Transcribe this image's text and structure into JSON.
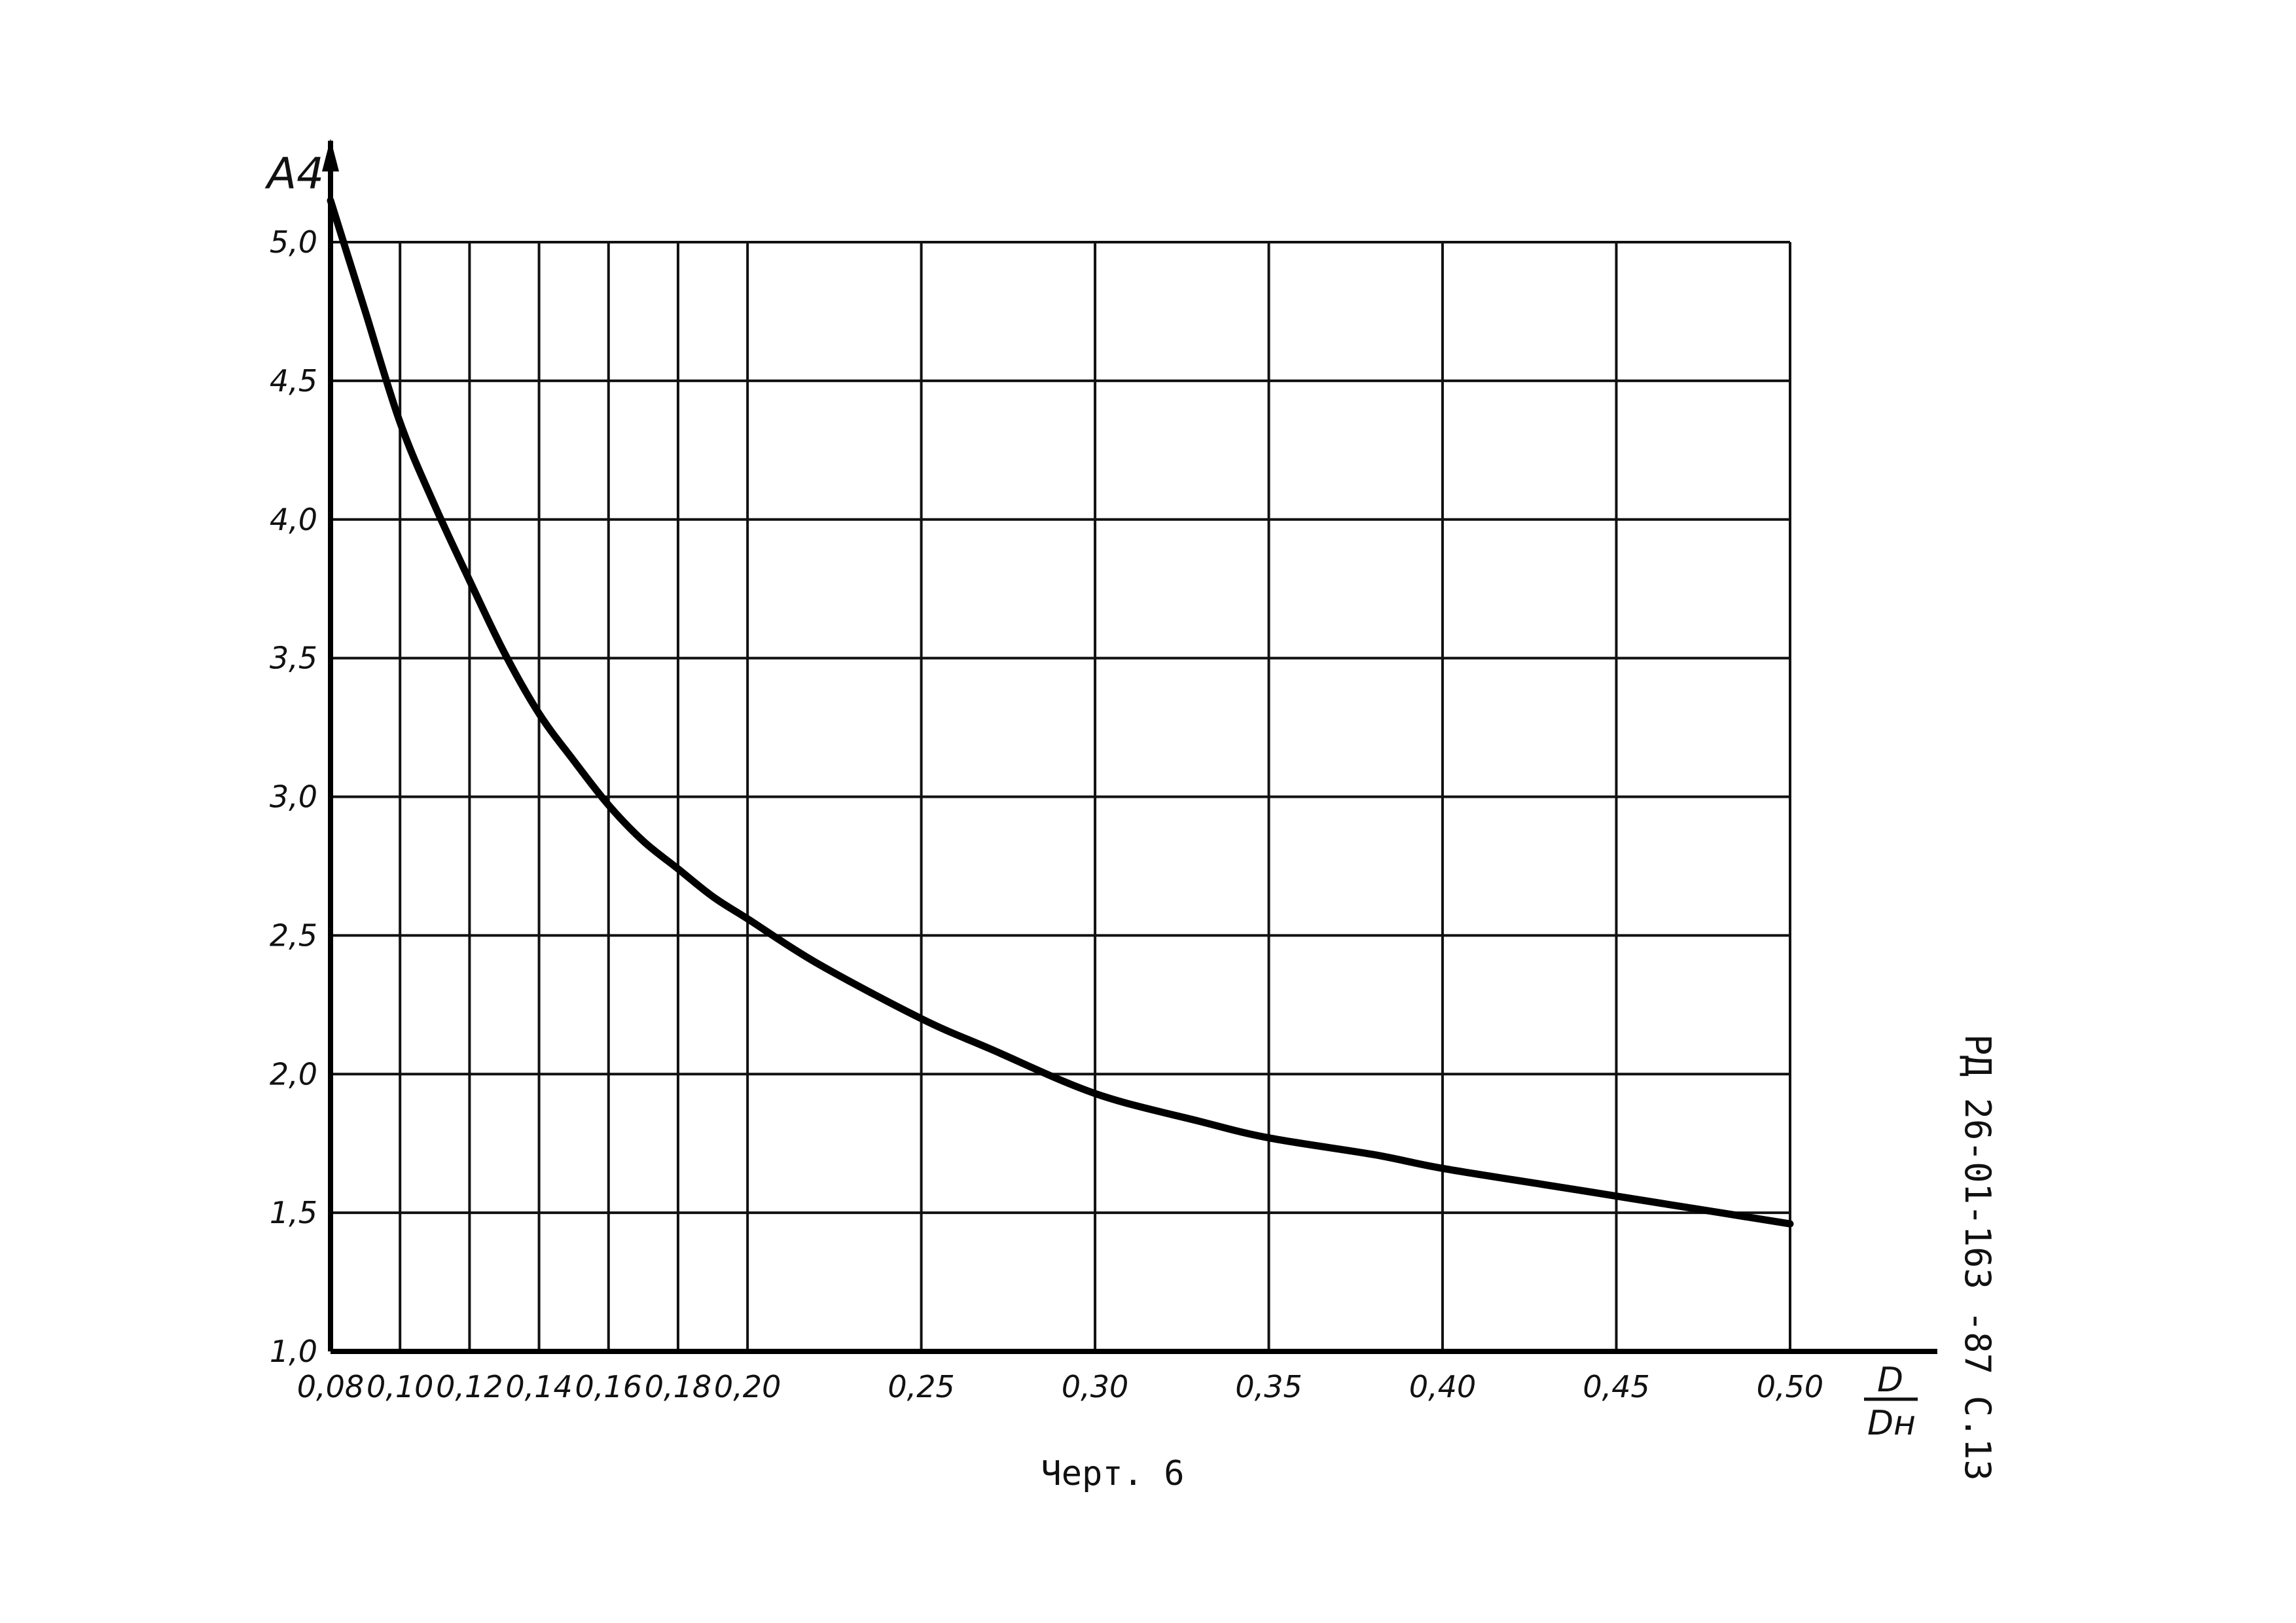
{
  "chart_data": {
    "type": "line",
    "ylabel": "A4",
    "xlabel_numerator": "D",
    "xlabel_denominator": "Dн",
    "xlim": [
      0.08,
      0.5
    ],
    "ylim": [
      1.0,
      5.0
    ],
    "grid": true,
    "x_ticks": [
      {
        "value": 0.08,
        "label": "0,08"
      },
      {
        "value": 0.1,
        "label": "0,10"
      },
      {
        "value": 0.12,
        "label": "0,12"
      },
      {
        "value": 0.14,
        "label": "0,14"
      },
      {
        "value": 0.16,
        "label": "0,16"
      },
      {
        "value": 0.18,
        "label": "0,18"
      },
      {
        "value": 0.2,
        "label": "0,20"
      },
      {
        "value": 0.25,
        "label": "0,25"
      },
      {
        "value": 0.3,
        "label": "0,30"
      },
      {
        "value": 0.35,
        "label": "0,35"
      },
      {
        "value": 0.4,
        "label": "0,40"
      },
      {
        "value": 0.45,
        "label": "0,45"
      },
      {
        "value": 0.5,
        "label": "0,50"
      }
    ],
    "y_ticks": [
      {
        "value": 1.0,
        "label": "1,0"
      },
      {
        "value": 1.5,
        "label": "1,5"
      },
      {
        "value": 2.0,
        "label": "2,0"
      },
      {
        "value": 2.5,
        "label": "2,5"
      },
      {
        "value": 3.0,
        "label": "3,0"
      },
      {
        "value": 3.5,
        "label": "3,5"
      },
      {
        "value": 4.0,
        "label": "4,0"
      },
      {
        "value": 4.5,
        "label": "4,5"
      },
      {
        "value": 5.0,
        "label": "5,0"
      }
    ],
    "series": [
      {
        "x": [
          0.08,
          0.085,
          0.09,
          0.1,
          0.11,
          0.12,
          0.13,
          0.14,
          0.15,
          0.16,
          0.17,
          0.18,
          0.19,
          0.2,
          0.22,
          0.25,
          0.27,
          0.3,
          0.33,
          0.35,
          0.38,
          0.4,
          0.43,
          0.45,
          0.48,
          0.5
        ],
        "y": [
          5.15,
          4.95,
          4.75,
          4.35,
          4.05,
          3.78,
          3.52,
          3.3,
          3.13,
          2.97,
          2.84,
          2.74,
          2.64,
          2.56,
          2.4,
          2.2,
          2.09,
          1.93,
          1.83,
          1.77,
          1.71,
          1.66,
          1.6,
          1.56,
          1.5,
          1.46
        ]
      }
    ]
  },
  "caption": "Черт. 6",
  "doc_code": "РД 26-01-163 -87   С.13"
}
